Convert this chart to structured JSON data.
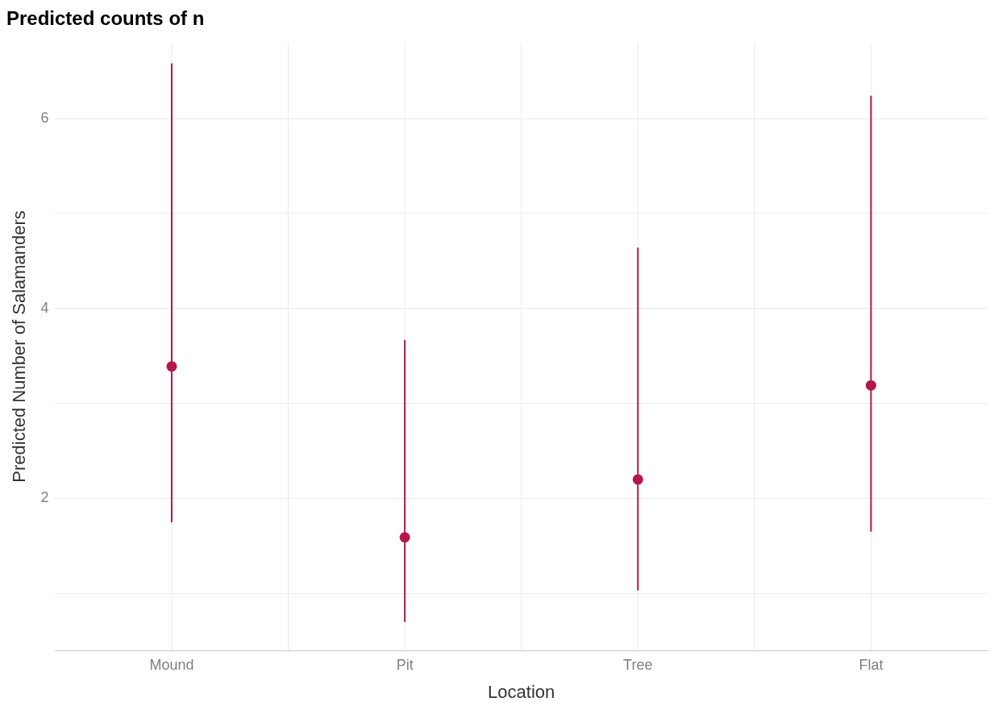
{
  "chart_data": {
    "type": "scatter",
    "title": "Predicted counts of n",
    "xlabel": "Location",
    "ylabel": "Predicted Number of Salamanders",
    "categories": [
      "Mound",
      "Pit",
      "Tree",
      "Flat"
    ],
    "series": [
      {
        "color": "#b5174b",
        "values": [
          3.39,
          1.59,
          2.2,
          3.19
        ],
        "errors": [
          [
            1.75,
            6.58
          ],
          [
            0.7,
            3.67
          ],
          [
            1.03,
            4.64
          ],
          [
            1.65,
            6.24
          ]
        ]
      }
    ],
    "ylim": [
      0.4,
      6.8
    ],
    "yticks": [
      {
        "value": 1,
        "label": null
      },
      2,
      {
        "value": 3,
        "label": null
      },
      4,
      {
        "value": 5,
        "label": null
      },
      6
    ],
    "grid": true,
    "legend": false,
    "marker": "circle"
  }
}
